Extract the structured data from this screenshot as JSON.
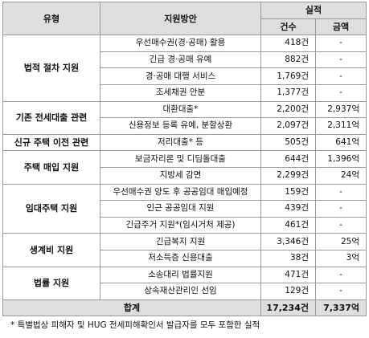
{
  "header": {
    "type": "유형",
    "plan": "지원방안",
    "results": "실적",
    "count": "건수",
    "amount": "금액"
  },
  "groups": [
    {
      "type": "법적 절차 지원",
      "rows": [
        {
          "plan": "우선매수권(경·공매) 활용",
          "count": "418건",
          "amount": "-"
        },
        {
          "plan": "긴급 경·공매 유예",
          "count": "882건",
          "amount": "-"
        },
        {
          "plan": "경·공매 대행 서비스",
          "count": "1,769건",
          "amount": "-"
        },
        {
          "plan": "조세채권 안분",
          "count": "1,377건",
          "amount": "-"
        }
      ]
    },
    {
      "type": "기존 전세대출 관련",
      "rows": [
        {
          "plan": "대환대출*",
          "count": "2,200건",
          "amount": "2,937억"
        },
        {
          "plan": "신용정보 등록 유예, 분할상환",
          "count": "2,097건",
          "amount": "2,311억"
        }
      ]
    },
    {
      "type": "신규 주택 이전 관련",
      "rows": [
        {
          "plan": "저리대출* 등",
          "count": "505건",
          "amount": "641억"
        }
      ]
    },
    {
      "type": "주택 매입 지원",
      "rows": [
        {
          "plan": "보금자리론 및 디딤돌대출",
          "count": "644건",
          "amount": "1,396억"
        },
        {
          "plan": "지방세 감면",
          "count": "2,299건",
          "amount": "24억"
        }
      ]
    },
    {
      "type": "임대주택 지원",
      "rows": [
        {
          "plan": "우선매수권 양도 후 공공임대 매입예정",
          "count": "159건",
          "amount": "-"
        },
        {
          "plan": "인근 공공임대 지원",
          "count": "439건",
          "amount": "-"
        },
        {
          "plan": "긴급주거 지원*(임시거처 제공)",
          "count": "461건",
          "amount": "-"
        }
      ]
    },
    {
      "type": "생계비 지원",
      "rows": [
        {
          "plan": "긴급복지 지원",
          "count": "3,346건",
          "amount": "25억"
        },
        {
          "plan": "저소득층 신용대출",
          "count": "38건",
          "amount": "3억"
        }
      ]
    },
    {
      "type": "법률 지원",
      "rows": [
        {
          "plan": "소송대리 법률지원",
          "count": "471건",
          "amount": "-"
        },
        {
          "plan": "상속재산관리인 선임",
          "count": "129건",
          "amount": "-"
        }
      ]
    }
  ],
  "total": {
    "label": "합계",
    "count": "17,234건",
    "amount": "7,337억"
  },
  "footnote": "* 특별법상 피해자 및 HUG 전세피해확인서 발급자를 모두 포함한 실적"
}
